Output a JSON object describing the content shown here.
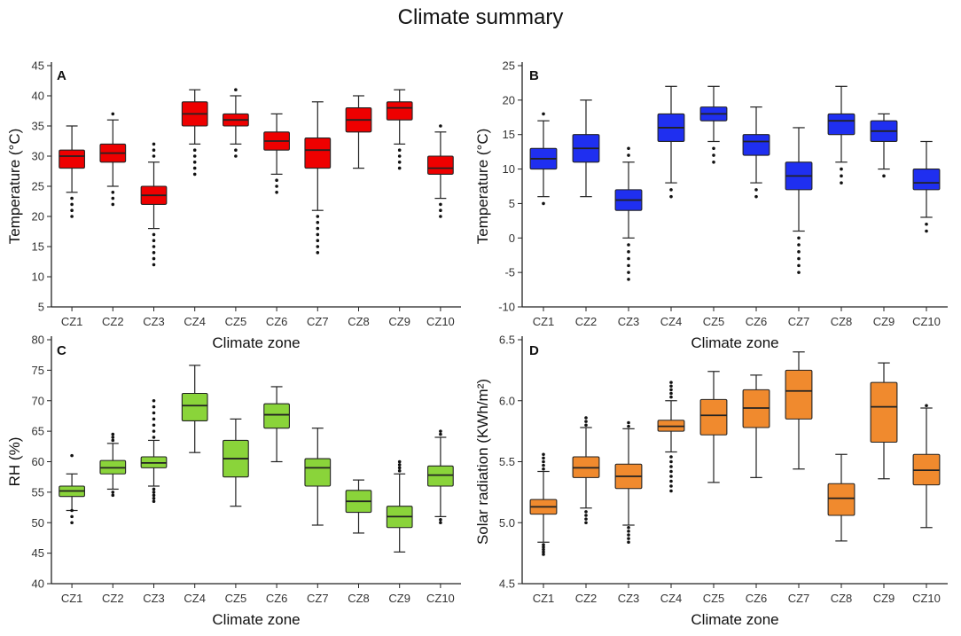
{
  "title": "Climate summary",
  "colors": {
    "A": "#ee0000",
    "B": "#1f2ff0",
    "C": "#8ad43a",
    "D": "#f08a2e",
    "axis": "#222222",
    "stroke": "#222222"
  },
  "chart_data": [
    {
      "panel": "A",
      "type": "boxplot",
      "title": "",
      "xlabel": "Climate zone",
      "ylabel": "Temperature (°C)",
      "ylim": [
        5,
        45
      ],
      "yticks": [
        5,
        10,
        15,
        20,
        25,
        30,
        35,
        40,
        45
      ],
      "categories": [
        "CZ1",
        "CZ2",
        "CZ3",
        "CZ4",
        "CZ5",
        "CZ6",
        "CZ7",
        "CZ8",
        "CZ9",
        "CZ10"
      ],
      "boxes": [
        {
          "whisker_low": 24,
          "q1": 28,
          "median": 30,
          "q3": 31,
          "whisker_high": 35,
          "outliers": [
            20,
            21,
            22,
            23
          ]
        },
        {
          "whisker_low": 25,
          "q1": 29,
          "median": 30.5,
          "q3": 32,
          "whisker_high": 36,
          "outliers": [
            22,
            23,
            24,
            37
          ]
        },
        {
          "whisker_low": 18,
          "q1": 22,
          "median": 23.5,
          "q3": 25,
          "whisker_high": 29,
          "outliers": [
            12,
            13,
            14,
            15,
            16,
            17,
            30,
            31,
            32
          ]
        },
        {
          "whisker_low": 32,
          "q1": 35,
          "median": 37,
          "q3": 39,
          "whisker_high": 41,
          "outliers": [
            27,
            28,
            29,
            30,
            31
          ]
        },
        {
          "whisker_low": 32,
          "q1": 35,
          "median": 36,
          "q3": 37,
          "whisker_high": 40,
          "outliers": [
            30,
            31,
            41
          ]
        },
        {
          "whisker_low": 27,
          "q1": 31,
          "median": 32.5,
          "q3": 34,
          "whisker_high": 37,
          "outliers": [
            24,
            25,
            26
          ]
        },
        {
          "whisker_low": 21,
          "q1": 28,
          "median": 31,
          "q3": 33,
          "whisker_high": 39,
          "outliers": [
            14,
            15,
            16,
            17,
            18,
            19,
            20
          ]
        },
        {
          "whisker_low": 28,
          "q1": 34,
          "median": 36,
          "q3": 38,
          "whisker_high": 40,
          "outliers": []
        },
        {
          "whisker_low": 32,
          "q1": 36,
          "median": 38,
          "q3": 39,
          "whisker_high": 41,
          "outliers": [
            28,
            29,
            30,
            31
          ]
        },
        {
          "whisker_low": 23,
          "q1": 27,
          "median": 28,
          "q3": 30,
          "whisker_high": 34,
          "outliers": [
            20,
            21,
            22,
            35
          ]
        }
      ]
    },
    {
      "panel": "B",
      "type": "boxplot",
      "title": "",
      "xlabel": "Climate zone",
      "ylabel": "Temperature (°C)",
      "ylim": [
        -10,
        25
      ],
      "yticks": [
        -10,
        -5,
        0,
        5,
        10,
        15,
        20,
        25
      ],
      "categories": [
        "CZ1",
        "CZ2",
        "CZ3",
        "CZ4",
        "CZ5",
        "CZ6",
        "CZ7",
        "CZ8",
        "CZ9",
        "CZ10"
      ],
      "boxes": [
        {
          "whisker_low": 6,
          "q1": 10,
          "median": 11.5,
          "q3": 13,
          "whisker_high": 17,
          "outliers": [
            5,
            18
          ]
        },
        {
          "whisker_low": 6,
          "q1": 11,
          "median": 13,
          "q3": 15,
          "whisker_high": 20,
          "outliers": []
        },
        {
          "whisker_low": 0,
          "q1": 4,
          "median": 5.5,
          "q3": 7,
          "whisker_high": 11,
          "outliers": [
            -6,
            -5,
            -4,
            -3,
            -2,
            -1,
            12,
            13
          ]
        },
        {
          "whisker_low": 8,
          "q1": 14,
          "median": 16,
          "q3": 18,
          "whisker_high": 22,
          "outliers": [
            6,
            7
          ]
        },
        {
          "whisker_low": 14,
          "q1": 17,
          "median": 18,
          "q3": 19,
          "whisker_high": 22,
          "outliers": [
            11,
            12,
            13
          ]
        },
        {
          "whisker_low": 8,
          "q1": 12,
          "median": 14,
          "q3": 15,
          "whisker_high": 19,
          "outliers": [
            6,
            7
          ]
        },
        {
          "whisker_low": 1,
          "q1": 7,
          "median": 9,
          "q3": 11,
          "whisker_high": 16,
          "outliers": [
            -5,
            -4,
            -3,
            -2,
            -1,
            0
          ]
        },
        {
          "whisker_low": 11,
          "q1": 15,
          "median": 17,
          "q3": 18,
          "whisker_high": 22,
          "outliers": [
            8,
            9,
            10
          ]
        },
        {
          "whisker_low": 10,
          "q1": 14,
          "median": 15.5,
          "q3": 17,
          "whisker_high": 18,
          "outliers": [
            9
          ]
        },
        {
          "whisker_low": 3,
          "q1": 7,
          "median": 8,
          "q3": 10,
          "whisker_high": 14,
          "outliers": [
            1,
            2
          ]
        }
      ]
    },
    {
      "panel": "C",
      "type": "boxplot",
      "title": "",
      "xlabel": "Climate zone",
      "ylabel": "RH (%)",
      "ylim": [
        40,
        80
      ],
      "yticks": [
        40,
        45,
        50,
        55,
        60,
        65,
        70,
        75,
        80
      ],
      "categories": [
        "CZ1",
        "CZ2",
        "CZ3",
        "CZ4",
        "CZ5",
        "CZ6",
        "CZ7",
        "CZ8",
        "CZ9",
        "CZ10"
      ],
      "boxes": [
        {
          "whisker_low": 52,
          "q1": 54.3,
          "median": 55.2,
          "q3": 56,
          "whisker_high": 58,
          "outliers": [
            50,
            51,
            52,
            61
          ]
        },
        {
          "whisker_low": 55.5,
          "q1": 58,
          "median": 59,
          "q3": 60.2,
          "whisker_high": 63,
          "outliers": [
            54.5,
            55,
            63.5,
            64,
            64.5
          ]
        },
        {
          "whisker_low": 56,
          "q1": 59,
          "median": 59.8,
          "q3": 60.8,
          "whisker_high": 63.5,
          "outliers": [
            53.5,
            54,
            54.5,
            55,
            55.5,
            64,
            65,
            66,
            67,
            68,
            69,
            70
          ]
        },
        {
          "whisker_low": 61.5,
          "q1": 66.7,
          "median": 69.2,
          "q3": 71.2,
          "whisker_high": 75.8,
          "outliers": []
        },
        {
          "whisker_low": 52.7,
          "q1": 57.5,
          "median": 60.5,
          "q3": 63.5,
          "whisker_high": 67,
          "outliers": []
        },
        {
          "whisker_low": 60,
          "q1": 65.5,
          "median": 67.7,
          "q3": 69.5,
          "whisker_high": 72.3,
          "outliers": []
        },
        {
          "whisker_low": 49.6,
          "q1": 56,
          "median": 59,
          "q3": 60.5,
          "whisker_high": 65.5,
          "outliers": []
        },
        {
          "whisker_low": 48.3,
          "q1": 51.7,
          "median": 53.5,
          "q3": 55.3,
          "whisker_high": 57,
          "outliers": []
        },
        {
          "whisker_low": 45.2,
          "q1": 49.2,
          "median": 51,
          "q3": 52.7,
          "whisker_high": 58,
          "outliers": [
            58.5,
            59,
            59.5,
            60
          ]
        },
        {
          "whisker_low": 51,
          "q1": 56,
          "median": 57.8,
          "q3": 59.3,
          "whisker_high": 64,
          "outliers": [
            50,
            50.5,
            64.5,
            65
          ]
        }
      ]
    },
    {
      "panel": "D",
      "type": "boxplot",
      "title": "",
      "xlabel": "Climate zone",
      "ylabel": "Solar radiation (KWh/m²)",
      "ylim": [
        4.5,
        6.5
      ],
      "yticks": [
        4.5,
        5.0,
        5.5,
        6.0,
        6.5
      ],
      "categories": [
        "CZ1",
        "CZ2",
        "CZ3",
        "CZ4",
        "CZ5",
        "CZ6",
        "CZ7",
        "CZ8",
        "CZ9",
        "CZ10"
      ],
      "boxes": [
        {
          "whisker_low": 4.84,
          "q1": 5.07,
          "median": 5.13,
          "q3": 5.19,
          "whisker_high": 5.42,
          "outliers": [
            4.74,
            4.76,
            4.78,
            4.8,
            4.82,
            5.44,
            5.47,
            5.5,
            5.53,
            5.56
          ]
        },
        {
          "whisker_low": 5.12,
          "q1": 5.37,
          "median": 5.45,
          "q3": 5.54,
          "whisker_high": 5.78,
          "outliers": [
            5.0,
            5.03,
            5.06,
            5.09,
            5.8,
            5.83,
            5.86
          ]
        },
        {
          "whisker_low": 4.98,
          "q1": 5.28,
          "median": 5.38,
          "q3": 5.48,
          "whisker_high": 5.77,
          "outliers": [
            4.84,
            4.87,
            4.9,
            4.93,
            4.96,
            5.79,
            5.82
          ]
        },
        {
          "whisker_low": 5.58,
          "q1": 5.75,
          "median": 5.79,
          "q3": 5.84,
          "whisker_high": 6.0,
          "outliers": [
            5.26,
            5.3,
            5.34,
            5.38,
            5.42,
            5.46,
            5.5,
            5.54,
            6.03,
            6.06,
            6.09,
            6.12,
            6.15
          ]
        },
        {
          "whisker_low": 5.33,
          "q1": 5.72,
          "median": 5.88,
          "q3": 6.01,
          "whisker_high": 6.24,
          "outliers": []
        },
        {
          "whisker_low": 5.37,
          "q1": 5.78,
          "median": 5.94,
          "q3": 6.09,
          "whisker_high": 6.21,
          "outliers": []
        },
        {
          "whisker_low": 5.44,
          "q1": 5.85,
          "median": 6.08,
          "q3": 6.25,
          "whisker_high": 6.4,
          "outliers": []
        },
        {
          "whisker_low": 4.85,
          "q1": 5.06,
          "median": 5.2,
          "q3": 5.32,
          "whisker_high": 5.56,
          "outliers": []
        },
        {
          "whisker_low": 5.36,
          "q1": 5.66,
          "median": 5.95,
          "q3": 6.15,
          "whisker_high": 6.31,
          "outliers": []
        },
        {
          "whisker_low": 4.96,
          "q1": 5.31,
          "median": 5.43,
          "q3": 5.56,
          "whisker_high": 5.94,
          "outliers": [
            5.96
          ]
        }
      ]
    }
  ]
}
